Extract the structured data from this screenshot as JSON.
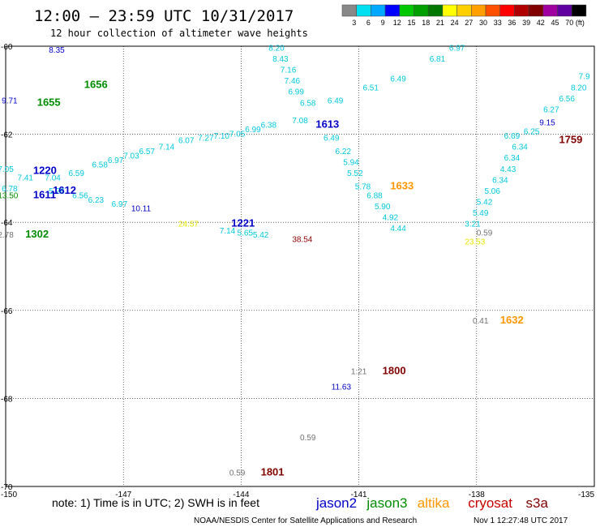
{
  "header": {
    "title": "12:00 – 23:59 UTC 10/31/2017",
    "subtitle": "12 hour collection of altimeter wave heights"
  },
  "legend": {
    "unit": "(ft)",
    "bins": [
      {
        "label": "3",
        "color": "#888888"
      },
      {
        "label": "6",
        "color": "#00e0f0"
      },
      {
        "label": "9",
        "color": "#00a8ff"
      },
      {
        "label": "12",
        "color": "#0000ff"
      },
      {
        "label": "15",
        "color": "#00c800"
      },
      {
        "label": "18",
        "color": "#00a000"
      },
      {
        "label": "21",
        "color": "#007800"
      },
      {
        "label": "24",
        "color": "#ffff00"
      },
      {
        "label": "27",
        "color": "#ffd000"
      },
      {
        "label": "30",
        "color": "#ffa000"
      },
      {
        "label": "33",
        "color": "#ff5000"
      },
      {
        "label": "36",
        "color": "#ff0000"
      },
      {
        "label": "39",
        "color": "#b00000"
      },
      {
        "label": "42",
        "color": "#800000"
      },
      {
        "label": "45",
        "color": "#a000a0"
      },
      {
        "label": "70",
        "color": "#6000a0"
      },
      {
        "label": "",
        "color": "#000000"
      }
    ]
  },
  "map": {
    "x_ticks": [
      "-150",
      "-147",
      "-144",
      "-141",
      "-138",
      "-135"
    ],
    "y_ticks": [
      "-60",
      "-62",
      "-64",
      "-66",
      "-68",
      "-70"
    ],
    "colors": {
      "jason2": "#0000c8",
      "jason3": "#008c00",
      "altika": "#ff9600",
      "cryosat": "#c80000",
      "s3a": "#800000",
      "cyan": "#00c8dc",
      "gray": "#707070",
      "yellow": "#e6e600",
      "darkred": "#8c0000",
      "orange": "#ffa000",
      "blue": "#0000c8"
    },
    "labels": [
      {
        "text": "8.35",
        "c": "blue",
        "lon": -148.9,
        "lat": -60.15
      },
      {
        "text": "8.20",
        "c": "cyan",
        "lon": -143.3,
        "lat": -60.1
      },
      {
        "text": "8.43",
        "c": "cyan",
        "lon": -143.2,
        "lat": -60.35
      },
      {
        "text": "7.16",
        "c": "cyan",
        "lon": -143.0,
        "lat": -60.6
      },
      {
        "text": "7.46",
        "c": "cyan",
        "lon": -142.9,
        "lat": -60.85
      },
      {
        "text": "6.99",
        "c": "cyan",
        "lon": -142.8,
        "lat": -61.1
      },
      {
        "text": "6.97",
        "c": "cyan",
        "lon": -138.7,
        "lat": -60.1
      },
      {
        "text": "6.81",
        "c": "cyan",
        "lon": -139.2,
        "lat": -60.35
      },
      {
        "text": "6.49",
        "c": "cyan",
        "lon": -140.2,
        "lat": -60.8
      },
      {
        "text": "6.51",
        "c": "cyan",
        "lon": -140.9,
        "lat": -61.0
      },
      {
        "text": "6.49",
        "c": "cyan",
        "lon": -141.8,
        "lat": -61.3
      },
      {
        "text": "6.58",
        "c": "cyan",
        "lon": -142.5,
        "lat": -61.35
      },
      {
        "text": "7.08",
        "c": "cyan",
        "lon": -142.7,
        "lat": -61.75
      },
      {
        "text": "6.38",
        "c": "cyan",
        "lon": -143.5,
        "lat": -61.85
      },
      {
        "text": "6.99",
        "c": "cyan",
        "lon": -143.9,
        "lat": -61.95
      },
      {
        "text": "7.05",
        "c": "cyan",
        "lon": -144.3,
        "lat": -62.05
      },
      {
        "text": "7.10",
        "c": "cyan",
        "lon": -144.7,
        "lat": -62.1
      },
      {
        "text": "7.27",
        "c": "cyan",
        "lon": -145.1,
        "lat": -62.15
      },
      {
        "text": "6.07",
        "c": "cyan",
        "lon": -145.6,
        "lat": -62.2
      },
      {
        "text": "7.14",
        "c": "cyan",
        "lon": -146.1,
        "lat": -62.35
      },
      {
        "text": "6.57",
        "c": "cyan",
        "lon": -146.6,
        "lat": -62.45
      },
      {
        "text": "7.03",
        "c": "cyan",
        "lon": -147.0,
        "lat": -62.55
      },
      {
        "text": "6.97",
        "c": "cyan",
        "lon": -147.4,
        "lat": -62.65
      },
      {
        "text": "6.58",
        "c": "cyan",
        "lon": -147.8,
        "lat": -62.75
      },
      {
        "text": "6.59",
        "c": "cyan",
        "lon": -148.4,
        "lat": -62.95
      },
      {
        "text": "7.04",
        "c": "cyan",
        "lon": -149.0,
        "lat": -63.05
      },
      {
        "text": "5.26",
        "c": "cyan",
        "lon": -148.9,
        "lat": -63.35
      },
      {
        "text": "6.56",
        "c": "cyan",
        "lon": -148.3,
        "lat": -63.45
      },
      {
        "text": "6.23",
        "c": "cyan",
        "lon": -147.9,
        "lat": -63.55
      },
      {
        "text": "6.97",
        "c": "cyan",
        "lon": -147.3,
        "lat": -63.65
      },
      {
        "text": "10.11",
        "c": "blue",
        "lon": -146.8,
        "lat": -63.75
      },
      {
        "text": "7.05",
        "c": "cyan",
        "lon": -150.2,
        "lat": -62.85
      },
      {
        "text": "7.41",
        "c": "cyan",
        "lon": -149.7,
        "lat": -63.05
      },
      {
        "text": "6.78",
        "c": "cyan",
        "lon": -150.1,
        "lat": -63.3
      },
      {
        "text": "13.50",
        "c": "jason3",
        "lon": -150.2,
        "lat": -63.45
      },
      {
        "text": "1220",
        "c": "jason2",
        "lon": -149.3,
        "lat": -62.9,
        "big": true
      },
      {
        "text": "1612",
        "c": "jason2",
        "lon": -148.8,
        "lat": -63.35,
        "big": true
      },
      {
        "text": "1611",
        "c": "jason2",
        "lon": -149.3,
        "lat": -63.45,
        "big": true
      },
      {
        "text": "1656",
        "c": "jason3",
        "lon": -148.0,
        "lat": -60.95,
        "big": true
      },
      {
        "text": "1655",
        "c": "jason3",
        "lon": -149.2,
        "lat": -61.35,
        "big": true
      },
      {
        "text": "9.71",
        "c": "blue",
        "lon": -150.1,
        "lat": -61.3
      },
      {
        "text": "1302",
        "c": "jason3",
        "lon": -149.5,
        "lat": -64.35,
        "big": true
      },
      {
        "text": "2.78",
        "c": "gray",
        "lon": -150.2,
        "lat": -64.35
      },
      {
        "text": "1613",
        "c": "jason2",
        "lon": -142.1,
        "lat": -61.85,
        "big": true
      },
      {
        "text": "6.49",
        "c": "cyan",
        "lon": -141.9,
        "lat": -62.15
      },
      {
        "text": "6.22",
        "c": "cyan",
        "lon": -141.6,
        "lat": -62.45
      },
      {
        "text": "5.94",
        "c": "cyan",
        "lon": -141.4,
        "lat": -62.7
      },
      {
        "text": "5.52",
        "c": "cyan",
        "lon": -141.3,
        "lat": -62.95
      },
      {
        "text": "5.78",
        "c": "cyan",
        "lon": -141.1,
        "lat": -63.25
      },
      {
        "text": "6.88",
        "c": "cyan",
        "lon": -140.8,
        "lat": -63.45
      },
      {
        "text": "5.90",
        "c": "cyan",
        "lon": -140.6,
        "lat": -63.7
      },
      {
        "text": "4.92",
        "c": "cyan",
        "lon": -140.4,
        "lat": -63.95
      },
      {
        "text": "4.44",
        "c": "cyan",
        "lon": -140.2,
        "lat": -64.2
      },
      {
        "text": "1633",
        "c": "altika",
        "lon": -140.2,
        "lat": -63.25,
        "big": true
      },
      {
        "text": "24.57",
        "c": "yellow",
        "lon": -145.6,
        "lat": -64.1
      },
      {
        "text": "1221",
        "c": "jason2",
        "lon": -144.25,
        "lat": -64.1,
        "big": true
      },
      {
        "text": "7.14",
        "c": "cyan",
        "lon": -144.55,
        "lat": -64.25
      },
      {
        "text": "5.65",
        "c": "cyan",
        "lon": -144.1,
        "lat": -64.3
      },
      {
        "text": "5.42",
        "c": "cyan",
        "lon": -143.7,
        "lat": -64.35
      },
      {
        "text": "38.54",
        "c": "darkred",
        "lon": -142.7,
        "lat": -64.45
      },
      {
        "text": "1759",
        "c": "s3a",
        "lon": -135.9,
        "lat": -62.2,
        "big": true
      },
      {
        "text": "9.15",
        "c": "blue",
        "lon": -136.4,
        "lat": -61.8
      },
      {
        "text": "6.25",
        "c": "cyan",
        "lon": -136.8,
        "lat": -62.0
      },
      {
        "text": "6.27",
        "c": "cyan",
        "lon": -136.3,
        "lat": -61.5
      },
      {
        "text": "6.56",
        "c": "cyan",
        "lon": -135.9,
        "lat": -61.25
      },
      {
        "text": "8.20",
        "c": "cyan",
        "lon": -135.6,
        "lat": -61.0
      },
      {
        "text": "7.9",
        "c": "cyan",
        "lon": -135.4,
        "lat": -60.75
      },
      {
        "text": "6.69",
        "c": "cyan",
        "lon": -137.3,
        "lat": -62.1
      },
      {
        "text": "6.34",
        "c": "cyan",
        "lon": -137.1,
        "lat": -62.35
      },
      {
        "text": "6.34",
        "c": "cyan",
        "lon": -137.3,
        "lat": -62.6
      },
      {
        "text": "4.43",
        "c": "cyan",
        "lon": -137.4,
        "lat": -62.85
      },
      {
        "text": "6.34",
        "c": "cyan",
        "lon": -137.6,
        "lat": -63.1
      },
      {
        "text": "5.06",
        "c": "cyan",
        "lon": -137.8,
        "lat": -63.35
      },
      {
        "text": "5.42",
        "c": "cyan",
        "lon": -138.0,
        "lat": -63.6
      },
      {
        "text": "5.49",
        "c": "cyan",
        "lon": -138.1,
        "lat": -63.85
      },
      {
        "text": "3.21",
        "c": "cyan",
        "lon": -138.3,
        "lat": -64.1
      },
      {
        "text": "0.59",
        "c": "gray",
        "lon": -138.0,
        "lat": -64.3
      },
      {
        "text": "23.53",
        "c": "yellow",
        "lon": -138.3,
        "lat": -64.5
      },
      {
        "text": "0.41",
        "c": "gray",
        "lon": -138.1,
        "lat": -66.3
      },
      {
        "text": "1632",
        "c": "altika",
        "lon": -137.4,
        "lat": -66.3,
        "big": true
      },
      {
        "text": "1:21",
        "c": "gray",
        "lon": -141.2,
        "lat": -67.45
      },
      {
        "text": "1800",
        "c": "s3a",
        "lon": -140.4,
        "lat": -67.45,
        "big": true
      },
      {
        "text": "11.63",
        "c": "blue",
        "lon": -141.7,
        "lat": -67.8
      },
      {
        "text": "0.59",
        "c": "gray",
        "lon": -142.5,
        "lat": -68.95
      },
      {
        "text": "0.59",
        "c": "gray",
        "lon": -144.3,
        "lat": -69.75
      },
      {
        "text": "1801",
        "c": "s3a",
        "lon": -143.5,
        "lat": -69.75,
        "big": true
      }
    ]
  },
  "footer": {
    "note": "note: 1) Time is in UTC; 2) SWH is in feet",
    "satellites": [
      {
        "name": "jason2",
        "color": "#0000c8"
      },
      {
        "name": "jason3",
        "color": "#008c00"
      },
      {
        "name": "altika",
        "color": "#ff9600"
      },
      {
        "name": "cryosat",
        "color": "#c80000"
      },
      {
        "name": "s3a",
        "color": "#800000"
      }
    ],
    "credit": "NOAA/NESDIS Center for Satellite Applications and Research",
    "timestamp": "Nov  1 12:27:48 UTC 2017"
  }
}
